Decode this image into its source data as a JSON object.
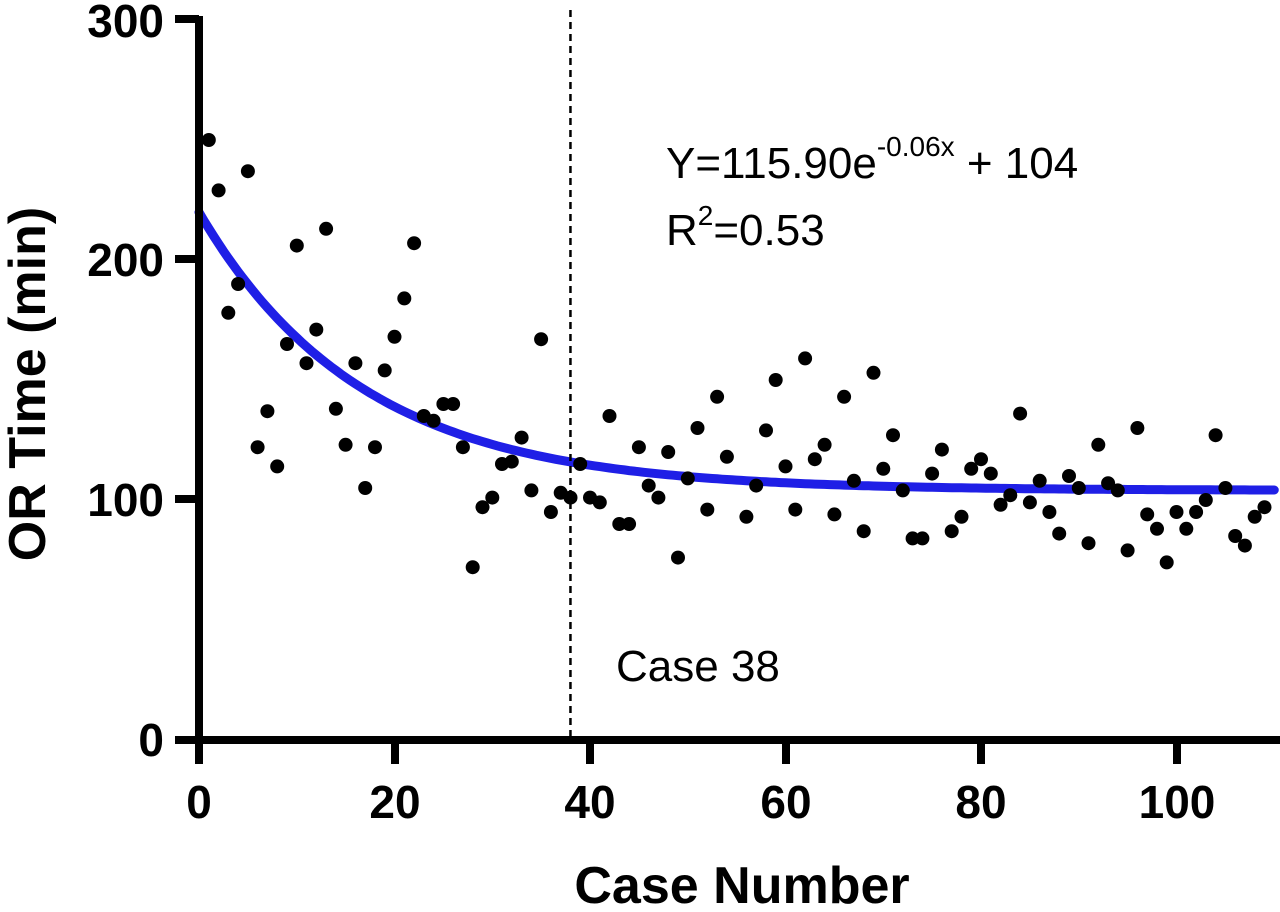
{
  "chart_data": {
    "type": "scatter",
    "title": "",
    "xlabel": "Case Number",
    "ylabel": "OR Time (min)",
    "xlim": [
      0,
      110
    ],
    "ylim": [
      0,
      300
    ],
    "x_ticks": [
      "0",
      "20",
      "40",
      "60",
      "80",
      "100"
    ],
    "y_ticks": [
      "0",
      "100",
      "200",
      "300"
    ],
    "grid": false,
    "colors": {
      "points": "#000000",
      "fit": "#1f1fe6",
      "reference_line": "#000000"
    },
    "points": [
      [
        1,
        250
      ],
      [
        2,
        229
      ],
      [
        3,
        178
      ],
      [
        4,
        190
      ],
      [
        5,
        237
      ],
      [
        6,
        122
      ],
      [
        7,
        137
      ],
      [
        8,
        114
      ],
      [
        9,
        165
      ],
      [
        10,
        206
      ],
      [
        11,
        157
      ],
      [
        12,
        171
      ],
      [
        13,
        213
      ],
      [
        14,
        138
      ],
      [
        15,
        123
      ],
      [
        16,
        157
      ],
      [
        17,
        105
      ],
      [
        18,
        122
      ],
      [
        19,
        154
      ],
      [
        20,
        168
      ],
      [
        21,
        184
      ],
      [
        22,
        207
      ],
      [
        23,
        135
      ],
      [
        24,
        133
      ],
      [
        25,
        140
      ],
      [
        26,
        140
      ],
      [
        27,
        122
      ],
      [
        28,
        72
      ],
      [
        29,
        97
      ],
      [
        30,
        101
      ],
      [
        31,
        115
      ],
      [
        32,
        116
      ],
      [
        33,
        126
      ],
      [
        34,
        104
      ],
      [
        35,
        167
      ],
      [
        36,
        95
      ],
      [
        37,
        103
      ],
      [
        38,
        101
      ],
      [
        39,
        115
      ],
      [
        40,
        101
      ],
      [
        41,
        99
      ],
      [
        42,
        135
      ],
      [
        43,
        90
      ],
      [
        44,
        90
      ],
      [
        45,
        122
      ],
      [
        46,
        106
      ],
      [
        47,
        101
      ],
      [
        48,
        120
      ],
      [
        49,
        76
      ],
      [
        50,
        109
      ],
      [
        51,
        130
      ],
      [
        52,
        96
      ],
      [
        53,
        143
      ],
      [
        54,
        118
      ],
      [
        56,
        93
      ],
      [
        57,
        106
      ],
      [
        58,
        129
      ],
      [
        59,
        150
      ],
      [
        60,
        114
      ],
      [
        61,
        96
      ],
      [
        62,
        159
      ],
      [
        63,
        117
      ],
      [
        64,
        123
      ],
      [
        65,
        94
      ],
      [
        66,
        143
      ],
      [
        67,
        108
      ],
      [
        68,
        87
      ],
      [
        69,
        153
      ],
      [
        70,
        113
      ],
      [
        71,
        127
      ],
      [
        72,
        104
      ],
      [
        73,
        84
      ],
      [
        74,
        84
      ],
      [
        75,
        111
      ],
      [
        76,
        121
      ],
      [
        77,
        87
      ],
      [
        78,
        93
      ],
      [
        79,
        113
      ],
      [
        80,
        117
      ],
      [
        81,
        111
      ],
      [
        82,
        98
      ],
      [
        83,
        102
      ],
      [
        84,
        136
      ],
      [
        85,
        99
      ],
      [
        86,
        108
      ],
      [
        87,
        95
      ],
      [
        88,
        86
      ],
      [
        89,
        110
      ],
      [
        90,
        105
      ],
      [
        91,
        82
      ],
      [
        92,
        123
      ],
      [
        93,
        107
      ],
      [
        94,
        104
      ],
      [
        95,
        79
      ],
      [
        96,
        130
      ],
      [
        97,
        94
      ],
      [
        98,
        88
      ],
      [
        99,
        74
      ],
      [
        100,
        95
      ],
      [
        101,
        88
      ],
      [
        102,
        95
      ],
      [
        103,
        100
      ],
      [
        104,
        127
      ],
      [
        105,
        105
      ],
      [
        106,
        85
      ],
      [
        107,
        81
      ],
      [
        108,
        93
      ],
      [
        109,
        97
      ]
    ],
    "fit": {
      "label": "Y=115.90e-0.06x + 104",
      "a": 115.9,
      "k": 0.06,
      "c": 104,
      "x_range": [
        0,
        110
      ]
    },
    "reference_line": {
      "x": 38,
      "label": "Case 38"
    },
    "annotations": {
      "equation_main": "Y=115.90e",
      "equation_exponent": "-0.06x",
      "equation_tail": " + 104",
      "r2_prefix": "R",
      "r2_sup": "2",
      "r2_value": "=0.53"
    }
  }
}
